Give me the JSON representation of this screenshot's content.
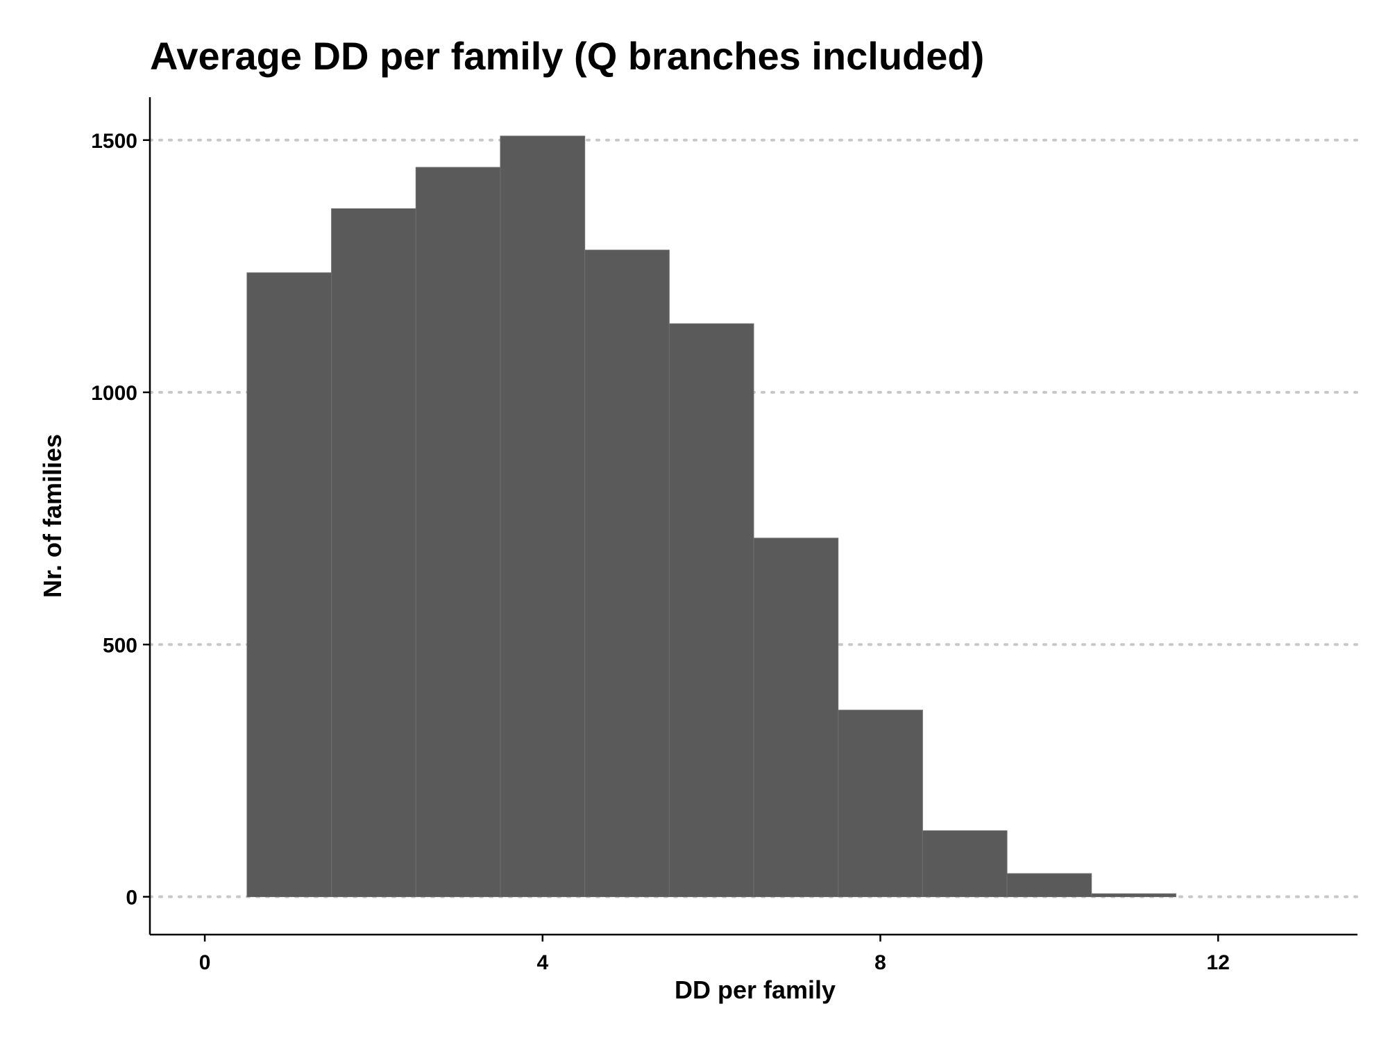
{
  "chart_data": {
    "type": "bar",
    "title": "Average DD per family (Q branches included)",
    "xlabel": "DD per family",
    "ylabel": "Nr. of families",
    "x_ticks": [
      "0",
      "4",
      "8",
      "12"
    ],
    "x_tick_values": [
      0,
      4,
      8,
      12
    ],
    "y_ticks": [
      "0",
      "500",
      "1000",
      "1500"
    ],
    "y_tick_values": [
      0,
      500,
      1000,
      1500
    ],
    "xlim": [
      -0.65,
      13.65
    ],
    "ylim": [
      -75,
      1585
    ],
    "bin_width": 1,
    "bins": [
      {
        "center": 1,
        "count": 1237
      },
      {
        "center": 2,
        "count": 1364
      },
      {
        "center": 3,
        "count": 1446
      },
      {
        "center": 4,
        "count": 1508
      },
      {
        "center": 5,
        "count": 1282
      },
      {
        "center": 6,
        "count": 1136
      },
      {
        "center": 7,
        "count": 711
      },
      {
        "center": 8,
        "count": 370
      },
      {
        "center": 9,
        "count": 131
      },
      {
        "center": 10,
        "count": 46
      },
      {
        "center": 11,
        "count": 6
      }
    ],
    "grid": "horizontal dotted",
    "legend": "none",
    "colors": {
      "bar_fill": "#5a5a5a",
      "bar_outline": "#6e6e6e",
      "grid": "#c8c8c8",
      "axis": "#000000"
    }
  }
}
